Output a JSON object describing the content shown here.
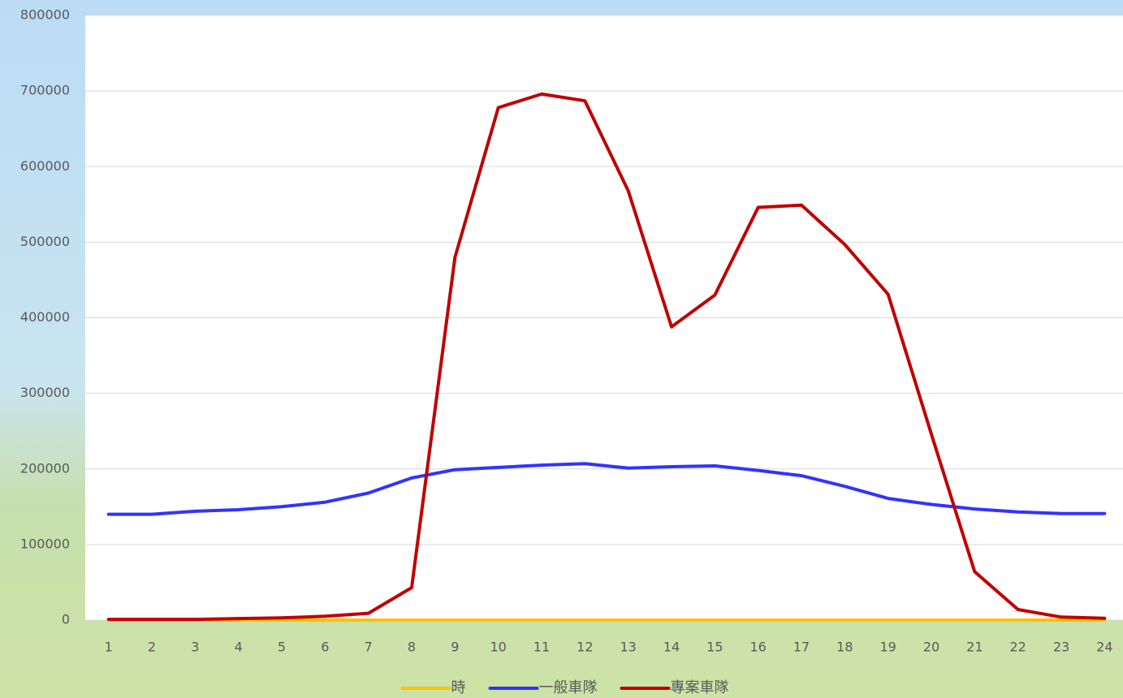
{
  "chart_data": {
    "type": "line",
    "categories": [
      "1",
      "2",
      "3",
      "4",
      "5",
      "6",
      "7",
      "8",
      "9",
      "10",
      "11",
      "12",
      "13",
      "14",
      "15",
      "16",
      "17",
      "18",
      "19",
      "20",
      "21",
      "22",
      "23",
      "24"
    ],
    "series": [
      {
        "name": "時",
        "color": "#ffc000",
        "values": [
          0,
          0,
          0,
          0,
          0,
          0,
          0,
          0,
          0,
          0,
          0,
          0,
          0,
          0,
          0,
          0,
          0,
          0,
          0,
          0,
          0,
          0,
          0,
          0
        ]
      },
      {
        "name": "一般車隊",
        "color": "#3333ff",
        "values": [
          140000,
          140000,
          144000,
          146000,
          150000,
          156000,
          168000,
          188000,
          199000,
          202000,
          205000,
          207000,
          201000,
          203000,
          204000,
          198000,
          191000,
          177000,
          161000,
          153000,
          147000,
          143000,
          141000,
          141000
        ]
      },
      {
        "name": "專案車隊",
        "color": "#c00000",
        "values": [
          1000,
          1000,
          1000,
          2000,
          3000,
          5000,
          9000,
          43000,
          480000,
          678000,
          696000,
          687000,
          568000,
          388000,
          430000,
          546000,
          549000,
          497000,
          431000,
          246000,
          64000,
          14000,
          4000,
          2500
        ]
      }
    ],
    "ylim": [
      0,
      800000
    ],
    "yticks": [
      0,
      100000,
      200000,
      300000,
      400000,
      500000,
      600000,
      700000,
      800000
    ],
    "grid": true,
    "legend": "bottom"
  }
}
